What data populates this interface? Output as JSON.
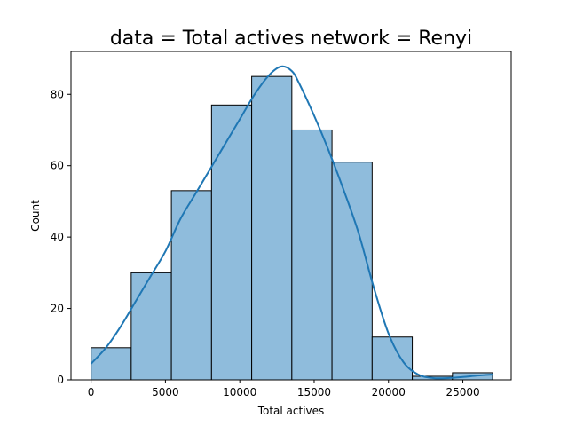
{
  "chart_data": {
    "type": "bar",
    "title": "data = Total actives network = Renyi",
    "xlabel": "Total actives",
    "ylabel": "Count",
    "xlim": [
      -1350,
      28250
    ],
    "ylim": [
      0,
      92
    ],
    "x_ticks": [
      0,
      5000,
      10000,
      15000,
      20000,
      25000
    ],
    "x_tick_labels": [
      "0",
      "5000",
      "10000",
      "15000",
      "20000",
      "25000"
    ],
    "y_ticks": [
      0,
      20,
      40,
      60,
      80
    ],
    "y_tick_labels": [
      "0",
      "20",
      "40",
      "60",
      "80"
    ],
    "bins": [
      {
        "start": 0,
        "end": 2700,
        "count": 9
      },
      {
        "start": 2700,
        "end": 5400,
        "count": 30
      },
      {
        "start": 5400,
        "end": 8100,
        "count": 53
      },
      {
        "start": 8100,
        "end": 10800,
        "count": 77
      },
      {
        "start": 10800,
        "end": 13500,
        "count": 85
      },
      {
        "start": 13500,
        "end": 16200,
        "count": 70
      },
      {
        "start": 16200,
        "end": 18900,
        "count": 61
      },
      {
        "start": 18900,
        "end": 21600,
        "count": 12
      },
      {
        "start": 21600,
        "end": 24300,
        "count": 1
      },
      {
        "start": 24300,
        "end": 27000,
        "count": 2
      }
    ],
    "kde": {
      "x": [
        0,
        1000,
        2000,
        3000,
        4000,
        5000,
        6000,
        7000,
        8000,
        9000,
        10000,
        11000,
        12000,
        12800,
        13500,
        14000,
        15000,
        16000,
        17000,
        18000,
        19000,
        20000,
        21000,
        22000,
        23000,
        24000,
        25000,
        26000,
        27000
      ],
      "y": [
        4.5,
        9,
        15,
        22,
        29,
        36,
        45,
        52,
        59,
        66,
        73,
        80,
        85.5,
        87.8,
        86.5,
        83,
        74,
        64,
        53,
        41,
        26,
        13,
        5,
        1.5,
        0.5,
        0.5,
        0.8,
        1.2,
        1.5
      ]
    },
    "colors": {
      "bar_fill": "#8fbcdc",
      "bar_edge": "#000000",
      "kde_line": "#1f77b4",
      "axes": "#000000",
      "background": "#ffffff"
    },
    "grid": false,
    "legend": "none"
  }
}
